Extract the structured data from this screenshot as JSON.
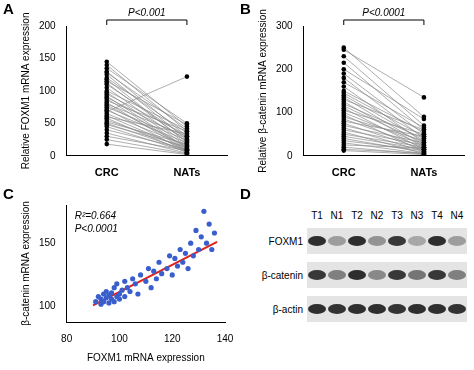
{
  "chart_data": [
    {
      "panel": "A",
      "type": "paired",
      "y_label": "Relative FOXM1 mRNA expression",
      "categories": [
        "CRC",
        "NATs"
      ],
      "color": "#000000",
      "grid": false,
      "ylim": [
        0,
        200
      ],
      "yticks": [
        0,
        50,
        100,
        150,
        200
      ],
      "annotations": [
        "P<0.001"
      ],
      "values": [
        [
          145,
          45
        ],
        [
          140,
          38
        ],
        [
          135,
          50
        ],
        [
          130,
          30
        ],
        [
          128,
          42
        ],
        [
          125,
          25
        ],
        [
          120,
          35
        ],
        [
          118,
          20
        ],
        [
          115,
          48
        ],
        [
          112,
          22
        ],
        [
          110,
          28
        ],
        [
          105,
          18
        ],
        [
          100,
          40
        ],
        [
          98,
          15
        ],
        [
          95,
          32
        ],
        [
          92,
          12
        ],
        [
          90,
          26
        ],
        [
          88,
          10
        ],
        [
          85,
          38
        ],
        [
          82,
          8
        ],
        [
          80,
          30
        ],
        [
          78,
          14
        ],
        [
          75,
          24
        ],
        [
          72,
          6
        ],
        [
          70,
          20
        ],
        [
          68,
          122
        ],
        [
          65,
          16
        ],
        [
          62,
          9
        ],
        [
          60,
          34
        ],
        [
          58,
          5
        ],
        [
          55,
          12
        ],
        [
          52,
          18
        ],
        [
          50,
          8
        ],
        [
          48,
          14
        ],
        [
          45,
          6
        ],
        [
          40,
          10
        ],
        [
          35,
          4
        ],
        [
          30,
          8
        ],
        [
          25,
          3
        ],
        [
          18,
          2
        ]
      ]
    },
    {
      "panel": "B",
      "type": "paired",
      "y_label": "Relative β-catenin mRNA expression",
      "categories": [
        "CRC",
        "NATs"
      ],
      "color": "#000000",
      "grid": false,
      "ylim": [
        0,
        300
      ],
      "yticks": [
        0,
        100,
        200,
        300
      ],
      "annotations": [
        "P<0.0001"
      ],
      "values": [
        [
          250,
          90
        ],
        [
          245,
          135
        ],
        [
          230,
          70
        ],
        [
          215,
          60
        ],
        [
          200,
          85
        ],
        [
          190,
          50
        ],
        [
          180,
          40
        ],
        [
          170,
          65
        ],
        [
          160,
          30
        ],
        [
          150,
          55
        ],
        [
          145,
          45
        ],
        [
          140,
          35
        ],
        [
          135,
          25
        ],
        [
          130,
          60
        ],
        [
          125,
          20
        ],
        [
          120,
          40
        ],
        [
          115,
          30
        ],
        [
          110,
          15
        ],
        [
          105,
          50
        ],
        [
          100,
          25
        ],
        [
          95,
          10
        ],
        [
          90,
          35
        ],
        [
          85,
          20
        ],
        [
          80,
          45
        ],
        [
          75,
          15
        ],
        [
          70,
          30
        ],
        [
          65,
          10
        ],
        [
          60,
          25
        ],
        [
          55,
          5
        ],
        [
          50,
          20
        ],
        [
          45,
          15
        ],
        [
          40,
          8
        ],
        [
          35,
          12
        ],
        [
          30,
          5
        ],
        [
          25,
          18
        ],
        [
          20,
          4
        ],
        [
          15,
          6
        ],
        [
          12,
          3
        ]
      ]
    },
    {
      "panel": "C",
      "type": "scatter",
      "x_label": "FOXM1 mRNA expression",
      "y_label": "β-catenin mRNA expression",
      "color": "#3a5fcd",
      "grid": false,
      "xlim": [
        80,
        140
      ],
      "xticks": [
        80,
        100,
        120,
        140
      ],
      "ylim": [
        88,
        180
      ],
      "yticks": [
        100,
        150
      ],
      "annotations": [
        "R²=0.664",
        "P<0.0001"
      ],
      "x": [
        91,
        92,
        93,
        93,
        94,
        94,
        95,
        95,
        96,
        96,
        97,
        97,
        98,
        98,
        99,
        99,
        100,
        100,
        101,
        102,
        102,
        103,
        104,
        105,
        106,
        107,
        108,
        110,
        111,
        112,
        113,
        114,
        115,
        116,
        118,
        119,
        120,
        121,
        122,
        123,
        124,
        125,
        126,
        127,
        128,
        129,
        130,
        131,
        132,
        133,
        134,
        135,
        136
      ],
      "values": [
        104,
        108,
        102,
        106,
        110,
        104,
        107,
        112,
        103,
        109,
        111,
        106,
        115,
        104,
        108,
        118,
        110,
        106,
        113,
        120,
        108,
        115,
        112,
        122,
        118,
        110,
        125,
        120,
        130,
        115,
        128,
        122,
        135,
        126,
        130,
        140,
        125,
        138,
        132,
        145,
        135,
        142,
        130,
        150,
        140,
        160,
        145,
        155,
        175,
        150,
        165,
        145,
        158
      ],
      "fit_line": {
        "color": "#e0201b",
        "x": [
          90,
          137
        ],
        "values": [
          101,
          151
        ]
      }
    }
  ],
  "blot": {
    "panel": "D",
    "lanes": [
      "T1",
      "N1",
      "T2",
      "N2",
      "T3",
      "N3",
      "T4",
      "N4"
    ],
    "color": "#1a1a1a",
    "rows": [
      {
        "label": "FOXM1",
        "intensity": [
          0.9,
          0.35,
          0.9,
          0.4,
          0.85,
          0.3,
          0.9,
          0.35
        ]
      },
      {
        "label": "β-catenin",
        "intensity": [
          0.85,
          0.5,
          0.9,
          0.45,
          0.85,
          0.55,
          0.85,
          0.5
        ]
      },
      {
        "label": "β-actin",
        "intensity": [
          0.9,
          0.88,
          0.9,
          0.9,
          0.88,
          0.9,
          0.9,
          0.88
        ]
      }
    ]
  }
}
